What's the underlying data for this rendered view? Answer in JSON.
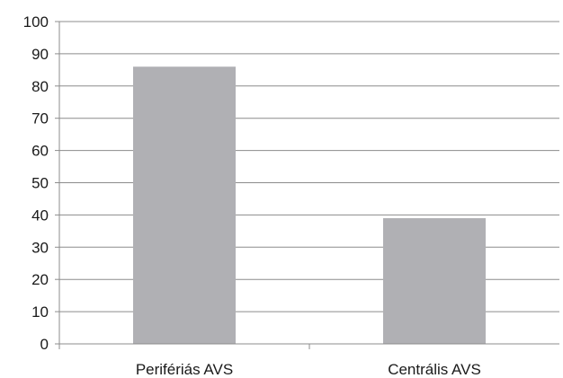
{
  "chart_data": {
    "type": "bar",
    "title": "",
    "xlabel": "",
    "ylabel": "",
    "categories": [
      "Perifériás AVS",
      "Centrális AVS"
    ],
    "values": [
      86,
      39
    ],
    "ylim": [
      0,
      100
    ],
    "yticks": [
      0,
      10,
      20,
      30,
      40,
      50,
      60,
      70,
      80,
      90,
      100
    ],
    "grid": true,
    "legend": "none",
    "bar_color": "#b0b0b4",
    "grid_color": "#8c8c8c"
  }
}
